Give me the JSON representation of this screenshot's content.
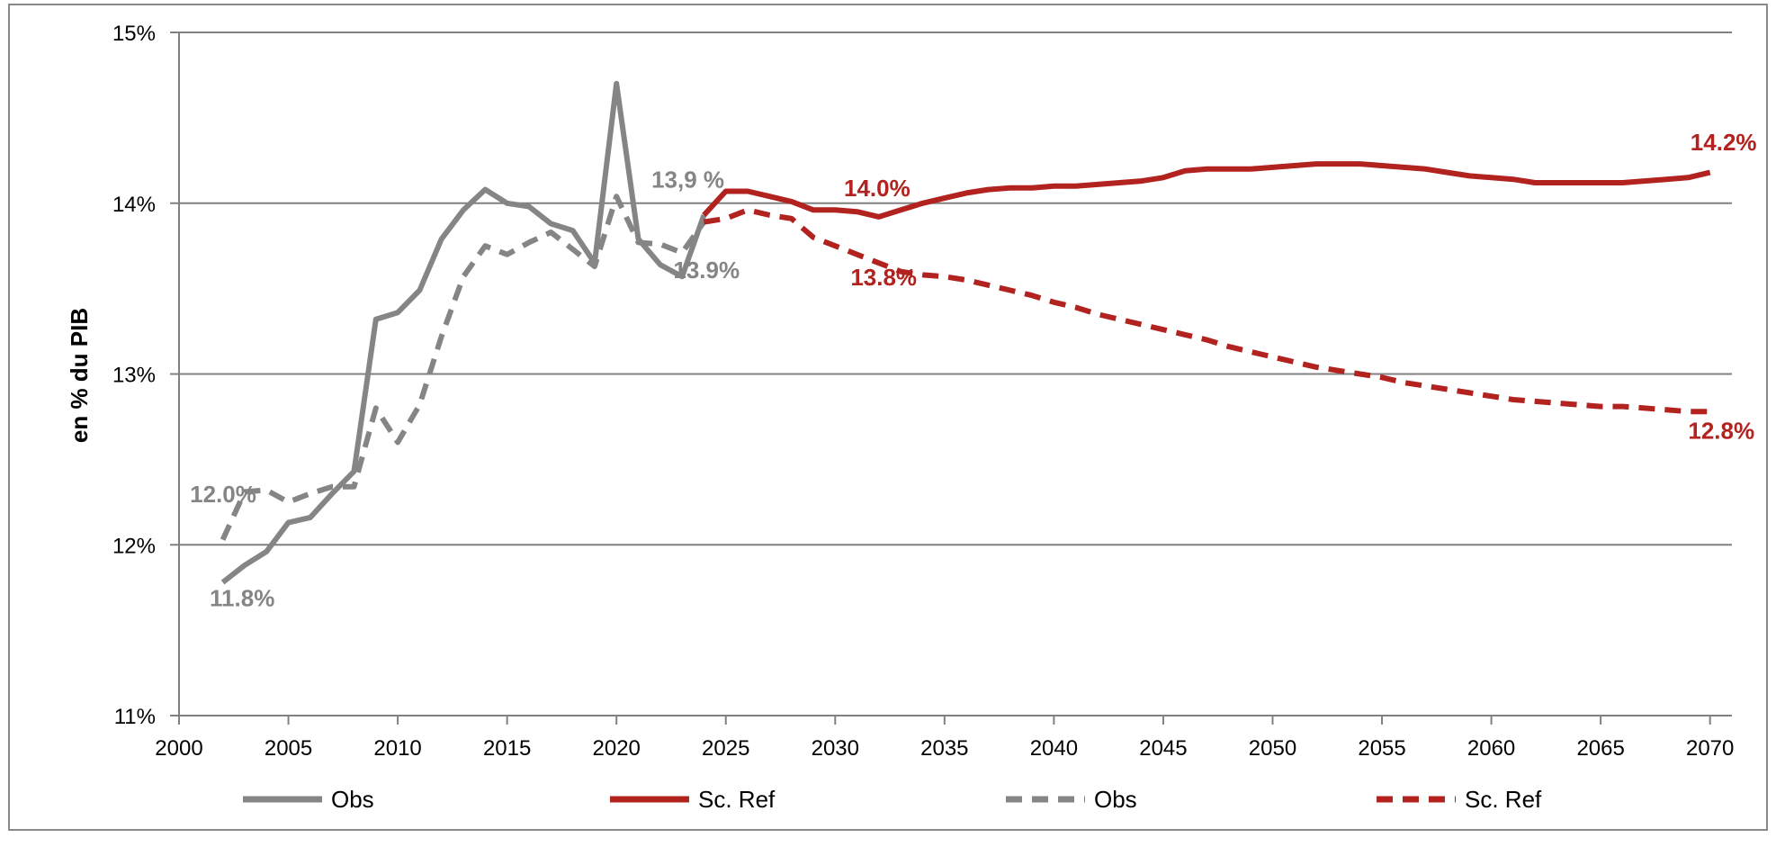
{
  "chart_data": {
    "type": "line",
    "ylabel": "en % du PIB",
    "xlabel": "",
    "title": "",
    "xlim": [
      2000,
      2071
    ],
    "ylim": [
      11,
      15
    ],
    "x_ticks": [
      2000,
      2005,
      2010,
      2015,
      2020,
      2025,
      2030,
      2035,
      2040,
      2045,
      2050,
      2055,
      2060,
      2065,
      2070
    ],
    "x_tick_labels": [
      "2000",
      "2005",
      "2010",
      "2015",
      "2020",
      "2025",
      "2030",
      "2035",
      "2040",
      "2045",
      "2050",
      "2055",
      "2060",
      "2065",
      "2070"
    ],
    "y_ticks": [
      11,
      12,
      13,
      14,
      15
    ],
    "y_tick_labels": [
      "11%",
      "12%",
      "13%",
      "14%",
      "15%"
    ],
    "grid": "horizontal",
    "legend_position": "bottom",
    "colors": {
      "obs": "#858585",
      "ref": "#b2221e",
      "grid": "#808080",
      "axis": "#808080"
    },
    "series": [
      {
        "name": "Obs",
        "style": "solid",
        "color": "#858585",
        "x": [
          2002,
          2003,
          2004,
          2005,
          2006,
          2007,
          2008,
          2009,
          2010,
          2011,
          2012,
          2013,
          2014,
          2015,
          2016,
          2017,
          2018,
          2019,
          2020,
          2021,
          2022,
          2023,
          2024
        ],
        "y": [
          11.78,
          11.88,
          11.96,
          12.13,
          12.16,
          12.3,
          12.43,
          13.32,
          13.36,
          13.49,
          13.79,
          13.96,
          14.08,
          14.0,
          13.98,
          13.88,
          13.84,
          13.65,
          14.7,
          13.79,
          13.64,
          13.57,
          13.93
        ]
      },
      {
        "name": "Sc. Ref",
        "style": "solid",
        "color": "#b2221e",
        "x": [
          2024,
          2025,
          2026,
          2027,
          2028,
          2029,
          2030,
          2031,
          2032,
          2033,
          2034,
          2035,
          2036,
          2037,
          2038,
          2039,
          2040,
          2041,
          2042,
          2043,
          2044,
          2045,
          2046,
          2047,
          2048,
          2049,
          2050,
          2051,
          2052,
          2053,
          2054,
          2055,
          2056,
          2057,
          2058,
          2059,
          2060,
          2061,
          2062,
          2063,
          2064,
          2065,
          2066,
          2067,
          2068,
          2069,
          2070
        ],
        "y": [
          13.93,
          14.07,
          14.07,
          14.04,
          14.01,
          13.96,
          13.96,
          13.95,
          13.92,
          13.96,
          14.0,
          14.03,
          14.06,
          14.08,
          14.09,
          14.09,
          14.1,
          14.1,
          14.11,
          14.12,
          14.13,
          14.15,
          14.19,
          14.2,
          14.2,
          14.2,
          14.21,
          14.22,
          14.23,
          14.23,
          14.23,
          14.22,
          14.21,
          14.2,
          14.18,
          14.16,
          14.15,
          14.14,
          14.12,
          14.12,
          14.12,
          14.12,
          14.12,
          14.13,
          14.14,
          14.15,
          14.18
        ]
      },
      {
        "name": "Obs",
        "style": "dashed",
        "color": "#858585",
        "x": [
          2002,
          2003,
          2004,
          2005,
          2006,
          2007,
          2008,
          2009,
          2010,
          2011,
          2012,
          2013,
          2014,
          2015,
          2016,
          2017,
          2018,
          2019,
          2020,
          2021,
          2022,
          2023,
          2024
        ],
        "y": [
          12.03,
          12.31,
          12.32,
          12.25,
          12.3,
          12.34,
          12.34,
          12.8,
          12.6,
          12.82,
          13.22,
          13.57,
          13.75,
          13.7,
          13.77,
          13.83,
          13.73,
          13.63,
          14.04,
          13.77,
          13.76,
          13.71,
          13.89
        ]
      },
      {
        "name": "Sc. Ref",
        "style": "dashed",
        "color": "#b2221e",
        "x": [
          2024,
          2025,
          2026,
          2027,
          2028,
          2029,
          2030,
          2031,
          2032,
          2033,
          2034,
          2035,
          2036,
          2037,
          2038,
          2039,
          2040,
          2041,
          2042,
          2043,
          2044,
          2045,
          2046,
          2047,
          2048,
          2049,
          2050,
          2051,
          2052,
          2053,
          2054,
          2055,
          2056,
          2057,
          2058,
          2059,
          2060,
          2061,
          2062,
          2063,
          2064,
          2065,
          2066,
          2067,
          2068,
          2069,
          2070
        ],
        "y": [
          13.89,
          13.91,
          13.96,
          13.93,
          13.91,
          13.8,
          13.75,
          13.7,
          13.65,
          13.6,
          13.58,
          13.57,
          13.55,
          13.52,
          13.49,
          13.46,
          13.42,
          13.39,
          13.35,
          13.32,
          13.29,
          13.26,
          13.23,
          13.2,
          13.16,
          13.13,
          13.1,
          13.07,
          13.04,
          13.02,
          13.0,
          12.98,
          12.95,
          12.93,
          12.91,
          12.89,
          12.87,
          12.85,
          12.84,
          12.83,
          12.82,
          12.81,
          12.81,
          12.8,
          12.79,
          12.78,
          12.78
        ]
      }
    ],
    "annotations": [
      {
        "text": "12.0%",
        "x": 2000.5,
        "y": 12.25,
        "color": "#858585",
        "anchor": "start"
      },
      {
        "text": "11.8%",
        "x": 2001.4,
        "y": 11.64,
        "color": "#858585",
        "anchor": "start"
      },
      {
        "text": "13,9 %",
        "x": 2021.6,
        "y": 14.09,
        "color": "#858585",
        "anchor": "start"
      },
      {
        "text": "13.9%",
        "x": 2022.6,
        "y": 13.56,
        "color": "#858585",
        "anchor": "start"
      },
      {
        "text": "14.0%",
        "x": 2030.4,
        "y": 14.04,
        "color": "#b2221e",
        "anchor": "start"
      },
      {
        "text": "13.8%",
        "x": 2030.7,
        "y": 13.52,
        "color": "#b2221e",
        "anchor": "start"
      },
      {
        "text": "14.2%",
        "x": 2069.1,
        "y": 14.31,
        "color": "#b2221e",
        "anchor": "start"
      },
      {
        "text": "12.8%",
        "x": 2069.0,
        "y": 12.62,
        "color": "#b2221e",
        "anchor": "start"
      }
    ]
  }
}
